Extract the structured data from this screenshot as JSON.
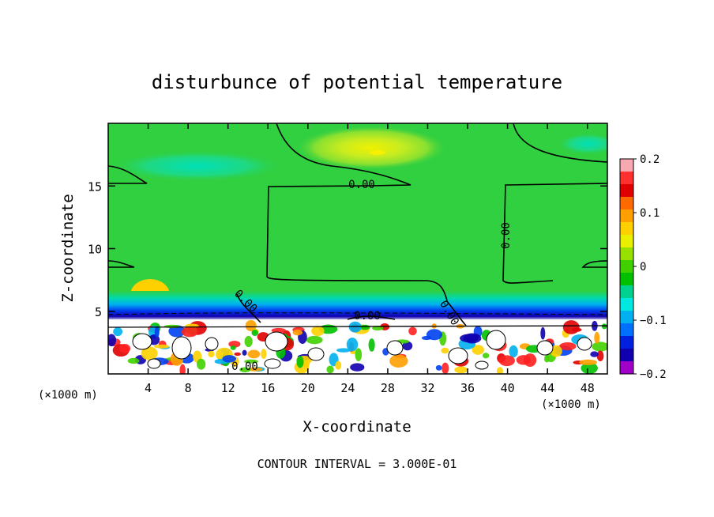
{
  "chart_data": {
    "type": "heatmap",
    "title": "disturbunce of potential temperature",
    "xlabel": "X-coordinate",
    "ylabel": "Z-coordinate",
    "x_unit": "(×1000 m)",
    "x_unit_right": "(×1000 m)",
    "xlim": [
      0,
      50
    ],
    "ylim": [
      0,
      20
    ],
    "xticks": [
      4,
      8,
      12,
      16,
      20,
      24,
      28,
      32,
      36,
      40,
      44,
      48
    ],
    "yticks": [
      5,
      10,
      15
    ],
    "colorbar": {
      "range": [
        -0.2,
        0.2
      ],
      "ticks": [
        "0.2",
        "0.1",
        "0",
        "−0.1",
        "−0.2"
      ],
      "tick_values": [
        0.2,
        0.1,
        0,
        -0.1,
        -0.2
      ],
      "colors": [
        "#f7a8b0",
        "#ff3030",
        "#e00000",
        "#ff6a00",
        "#ffa000",
        "#ffd000",
        "#e8f000",
        "#98e000",
        "#40d000",
        "#00c000",
        "#00d090",
        "#00e8e0",
        "#00b0f0",
        "#0070ff",
        "#0020e0",
        "#1000b0",
        "#a000c8"
      ]
    },
    "contour_labels": [
      "0.00",
      "0.00",
      "0.00",
      "0.00",
      "0.00",
      "0.00"
    ],
    "footer": "CONTOUR INTERVAL = 3.000E-01"
  }
}
